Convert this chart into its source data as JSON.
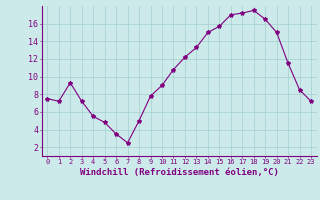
{
  "x": [
    0,
    1,
    2,
    3,
    4,
    5,
    6,
    7,
    8,
    9,
    10,
    11,
    12,
    13,
    14,
    15,
    16,
    17,
    18,
    19,
    20,
    21,
    22,
    23
  ],
  "y": [
    7.5,
    7.2,
    9.3,
    7.2,
    5.5,
    4.8,
    3.5,
    2.5,
    5.0,
    7.8,
    9.0,
    10.8,
    12.2,
    13.3,
    15.0,
    15.7,
    17.0,
    17.2,
    17.5,
    16.5,
    15.0,
    11.5,
    8.5,
    7.2
  ],
  "line_color": "#800080",
  "marker": "*",
  "marker_size": 3,
  "bg_color": "#cceaea",
  "grid_color": "#aad4d4",
  "axis_color": "#800080",
  "tick_color": "#800080",
  "xlabel": "Windchill (Refroidissement éolien,°C)",
  "xlabel_fontsize": 6.5,
  "tick_fontsize": 6,
  "ylim": [
    1,
    18
  ],
  "yticks": [
    2,
    4,
    6,
    8,
    10,
    12,
    14,
    16
  ],
  "xlim": [
    -0.5,
    23.5
  ],
  "xticks": [
    0,
    1,
    2,
    3,
    4,
    5,
    6,
    7,
    8,
    9,
    10,
    11,
    12,
    13,
    14,
    15,
    16,
    17,
    18,
    19,
    20,
    21,
    22,
    23
  ]
}
